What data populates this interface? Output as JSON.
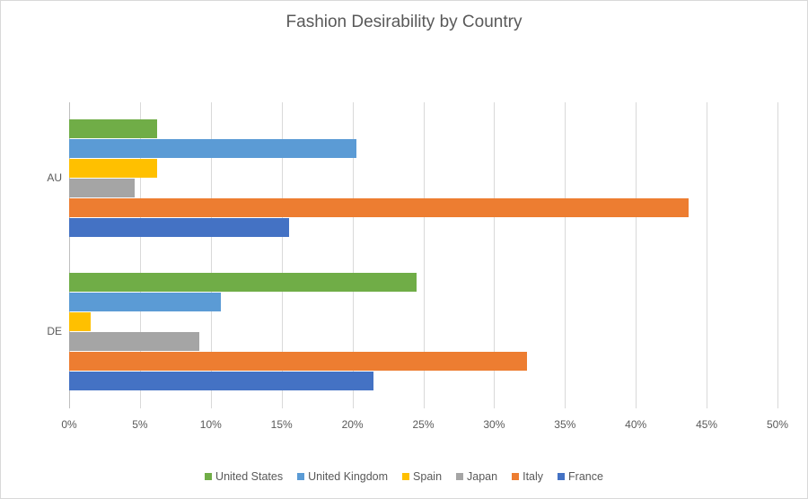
{
  "chart_data": {
    "type": "bar",
    "orientation": "horizontal",
    "title": "Fashion Desirability by Country",
    "xlabel": "",
    "ylabel": "",
    "categories": [
      "AU",
      "DE"
    ],
    "xlim": [
      0,
      0.5
    ],
    "x_ticks": [
      "0%",
      "5%",
      "10%",
      "15%",
      "20%",
      "25%",
      "30%",
      "35%",
      "40%",
      "45%",
      "50%"
    ],
    "grid": true,
    "legend_position": "bottom",
    "series": [
      {
        "name": "United States",
        "color": "#70ad47",
        "values": [
          0.062,
          0.245
        ]
      },
      {
        "name": "United Kingdom",
        "color": "#5b9bd5",
        "values": [
          0.203,
          0.107
        ]
      },
      {
        "name": "Spain",
        "color": "#ffc000",
        "values": [
          0.062,
          0.015
        ]
      },
      {
        "name": "Japan",
        "color": "#a5a5a5",
        "values": [
          0.046,
          0.092
        ]
      },
      {
        "name": "Italy",
        "color": "#ed7d31",
        "values": [
          0.437,
          0.323
        ]
      },
      {
        "name": "France",
        "color": "#4472c4",
        "values": [
          0.155,
          0.215
        ]
      }
    ]
  }
}
